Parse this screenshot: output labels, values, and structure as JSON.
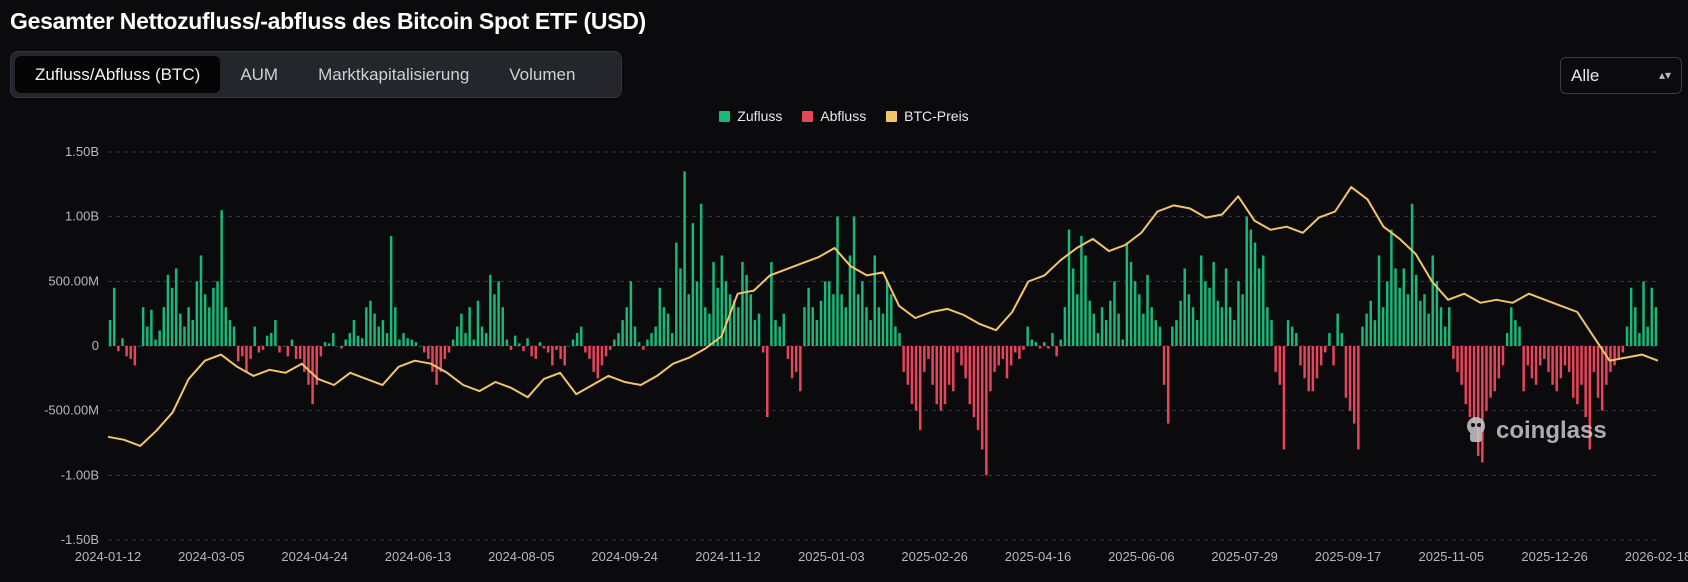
{
  "title": "Gesamter Nettozufluss/-abfluss des Bitcoin Spot ETF (USD)",
  "tabs": [
    {
      "label": "Zufluss/Abfluss (BTC)",
      "active": true
    },
    {
      "label": "AUM",
      "active": false
    },
    {
      "label": "Marktkapitalisierung",
      "active": false
    },
    {
      "label": "Volumen",
      "active": false
    }
  ],
  "range_select": {
    "value": "Alle",
    "chevron": "⌃⌄"
  },
  "watermark": "coinglass",
  "colors": {
    "inflow": "#16b979",
    "outflow": "#e8445a",
    "price": "#f3c56a",
    "grid": "#3a3a40",
    "background": "#0b0b0e"
  },
  "chart_data": {
    "type": "bar",
    "legend": [
      {
        "name": "Zufluss",
        "color": "#16b979"
      },
      {
        "name": "Abfluss",
        "color": "#e8445a"
      },
      {
        "name": "BTC-Preis",
        "color": "#f3c56a"
      }
    ],
    "legend_position": "top-center",
    "grid": true,
    "ylim": [
      -1500000000,
      1500000000
    ],
    "y_ticks": [
      "1.50B",
      "1.00B",
      "500.00M",
      "0",
      "-500.00M",
      "-1.00B",
      "-1.50B"
    ],
    "x_ticks": [
      "2024-01-12",
      "2024-03-05",
      "2024-04-24",
      "2024-06-13",
      "2024-08-05",
      "2024-09-24",
      "2024-11-12",
      "2025-01-03",
      "2025-02-26",
      "2025-04-16",
      "2025-06-06",
      "2025-07-29",
      "2025-09-17",
      "2025-11-05",
      "2025-12-26",
      "2026-02-18"
    ],
    "flow_series_millions": [
      200,
      450,
      -40,
      60,
      -80,
      -100,
      -150,
      0,
      300,
      150,
      280,
      50,
      120,
      300,
      550,
      450,
      600,
      250,
      150,
      300,
      200,
      500,
      700,
      400,
      300,
      450,
      500,
      1050,
      300,
      200,
      150,
      -120,
      -80,
      -200,
      -100,
      150,
      -50,
      -30,
      80,
      100,
      200,
      -50,
      0,
      -80,
      50,
      -100,
      -100,
      -200,
      -300,
      -450,
      -300,
      -80,
      30,
      20,
      100,
      0,
      -20,
      50,
      100,
      200,
      80,
      60,
      300,
      350,
      250,
      150,
      200,
      100,
      850,
      300,
      50,
      100,
      60,
      50,
      30,
      0,
      -50,
      -100,
      -200,
      -300,
      -200,
      -100,
      -50,
      50,
      150,
      250,
      100,
      300,
      50,
      350,
      150,
      100,
      550,
      400,
      500,
      300,
      50,
      -30,
      80,
      20,
      -40,
      60,
      -80,
      -100,
      30,
      -20,
      -50,
      -150,
      -30,
      -100,
      -150,
      0,
      50,
      100,
      150,
      -50,
      -100,
      -200,
      -250,
      -150,
      -80,
      -30,
      50,
      100,
      200,
      300,
      500,
      150,
      30,
      -30,
      50,
      100,
      150,
      450,
      300,
      250,
      100,
      800,
      600,
      1350,
      400,
      950,
      500,
      1100,
      300,
      250,
      650,
      450,
      700,
      500,
      400,
      350,
      300,
      650,
      550,
      400,
      200,
      250,
      -50,
      -550,
      650,
      200,
      150,
      250,
      -100,
      -250,
      -200,
      -350,
      300,
      450,
      300,
      200,
      350,
      500,
      500,
      400,
      1000,
      400,
      300,
      700,
      1000,
      400,
      500,
      300,
      200,
      700,
      300,
      250,
      500,
      400,
      150,
      100,
      -200,
      -300,
      -450,
      -500,
      -650,
      -200,
      -100,
      -300,
      -450,
      -500,
      -450,
      -300,
      -350,
      -50,
      -150,
      -250,
      -450,
      -550,
      -650,
      -800,
      -1000,
      -350,
      -200,
      -150,
      -100,
      -250,
      -150,
      -50,
      -100,
      -30,
      150,
      50,
      30,
      -20,
      30,
      -20,
      100,
      -80,
      50,
      300,
      900,
      600,
      400,
      850,
      700,
      350,
      250,
      100,
      300,
      200,
      350,
      500,
      250,
      50,
      800,
      650,
      500,
      400,
      250,
      550,
      300,
      200,
      150,
      -300,
      -600,
      150,
      200,
      350,
      600,
      400,
      300,
      200,
      700,
      500,
      450,
      650,
      350,
      300,
      600,
      300,
      200,
      500,
      400,
      1000,
      900,
      800,
      600,
      700,
      300,
      200,
      -200,
      -300,
      -800,
      200,
      150,
      100,
      -150,
      -250,
      -350,
      -350,
      -250,
      -150,
      -50,
      100,
      -150,
      250,
      100,
      -400,
      -500,
      -600,
      -800,
      150,
      250,
      350,
      200,
      700,
      300,
      500,
      900,
      600,
      450,
      600,
      400,
      1100,
      550,
      350,
      400,
      250,
      700,
      500,
      300,
      150,
      300,
      -100,
      -200,
      -300,
      -450,
      -550,
      -600,
      -850,
      -900,
      -500,
      -400,
      -350,
      -250,
      -150,
      100,
      300,
      200,
      150,
      -350,
      -150,
      -250,
      -300,
      -150,
      -100,
      -200,
      -300,
      -350,
      -250,
      -150,
      -200,
      -400,
      -450,
      -300,
      -550,
      -800,
      -200,
      -400,
      -500,
      -300,
      -200,
      -150,
      -100,
      -50,
      150,
      450,
      300,
      100,
      500,
      150,
      450,
      300
    ],
    "price_series_usd": [
      43000,
      42000,
      40000,
      45000,
      51000,
      62000,
      68000,
      70000,
      66000,
      63000,
      65000,
      64000,
      67000,
      62000,
      60000,
      64000,
      62000,
      60000,
      66000,
      68000,
      67000,
      64000,
      60000,
      58000,
      61000,
      59000,
      56000,
      62000,
      64000,
      57000,
      60000,
      63000,
      61000,
      60000,
      63000,
      67000,
      69000,
      72000,
      76000,
      90000,
      91000,
      96000,
      98000,
      100000,
      102000,
      105000,
      99000,
      96000,
      97000,
      86000,
      82000,
      84000,
      85000,
      83000,
      80000,
      78000,
      84000,
      94000,
      96000,
      101000,
      105000,
      108000,
      104000,
      106000,
      110000,
      117000,
      119000,
      118000,
      115000,
      116000,
      122000,
      114000,
      111000,
      112000,
      110000,
      115000,
      117000,
      125000,
      121000,
      112000,
      108000,
      103000,
      94000,
      88000,
      90000,
      87000,
      88000,
      87000,
      90000,
      88000,
      86000,
      84000,
      76000,
      68000,
      69000,
      70000,
      68000
    ]
  }
}
